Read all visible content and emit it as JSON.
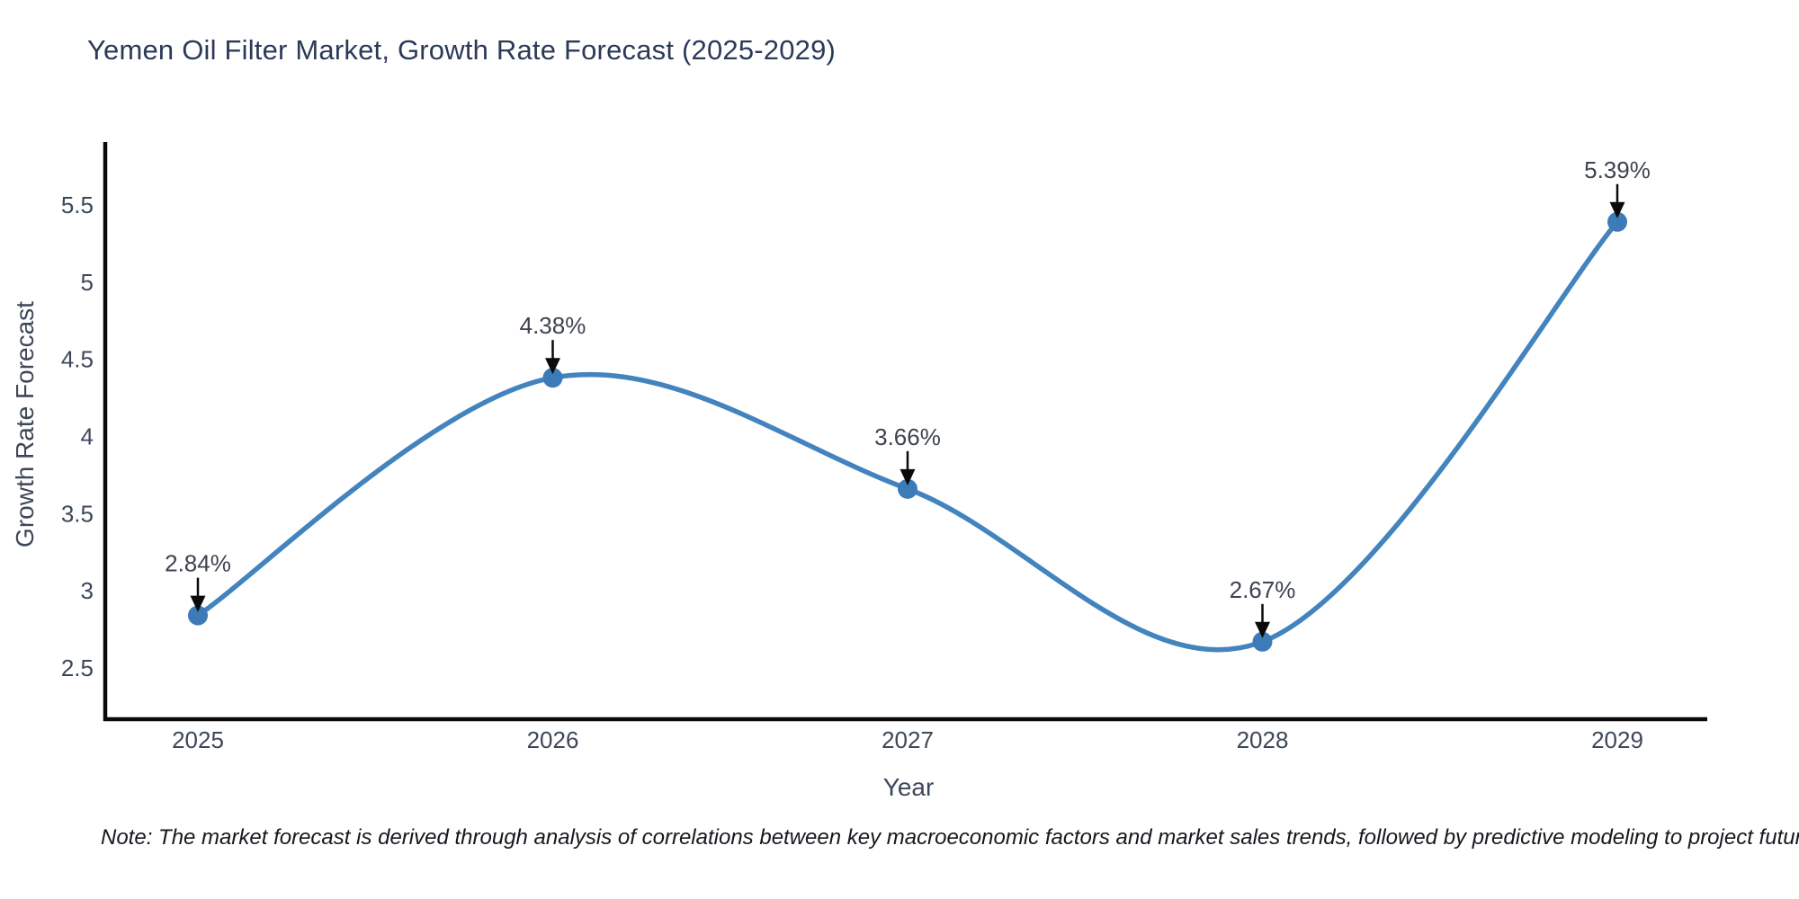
{
  "chart_data": {
    "type": "line",
    "title": "Yemen Oil Filter Market, Growth Rate Forecast (2025-2029)",
    "xlabel": "Year",
    "ylabel": "Growth Rate Forecast",
    "categories": [
      "2025",
      "2026",
      "2027",
      "2028",
      "2029"
    ],
    "x": [
      2025,
      2026,
      2027,
      2028,
      2029
    ],
    "values": [
      2.84,
      4.38,
      3.66,
      2.67,
      5.39
    ],
    "point_labels": [
      "2.84%",
      "4.38%",
      "3.66%",
      "2.67%",
      "5.39%"
    ],
    "yticks": [
      2.5,
      3,
      3.5,
      4,
      4.5,
      5,
      5.5
    ],
    "ytick_labels": [
      "2.5",
      "3",
      "3.5",
      "4",
      "4.5",
      "5",
      "5.5"
    ],
    "ylim": [
      2.17,
      5.9
    ],
    "xlim": [
      2024.74,
      2029.26
    ],
    "line_shape": "spline",
    "grid": false,
    "legend": "none",
    "colors": {
      "line": "#4384be",
      "marker": "#3d7ab8",
      "axis": "#0a0a0a",
      "title_text": "#2c3a58",
      "tick_text": "#3c4859",
      "annotation_text": "#3d434f",
      "annotation_arrow": "#0a0a0a",
      "background": "#ffffff"
    }
  },
  "note": {
    "text": "Note: The market forecast is derived through analysis of correlations between key macroeconomic factors and market sales trends, followed by predictive modeling to project future sales"
  }
}
